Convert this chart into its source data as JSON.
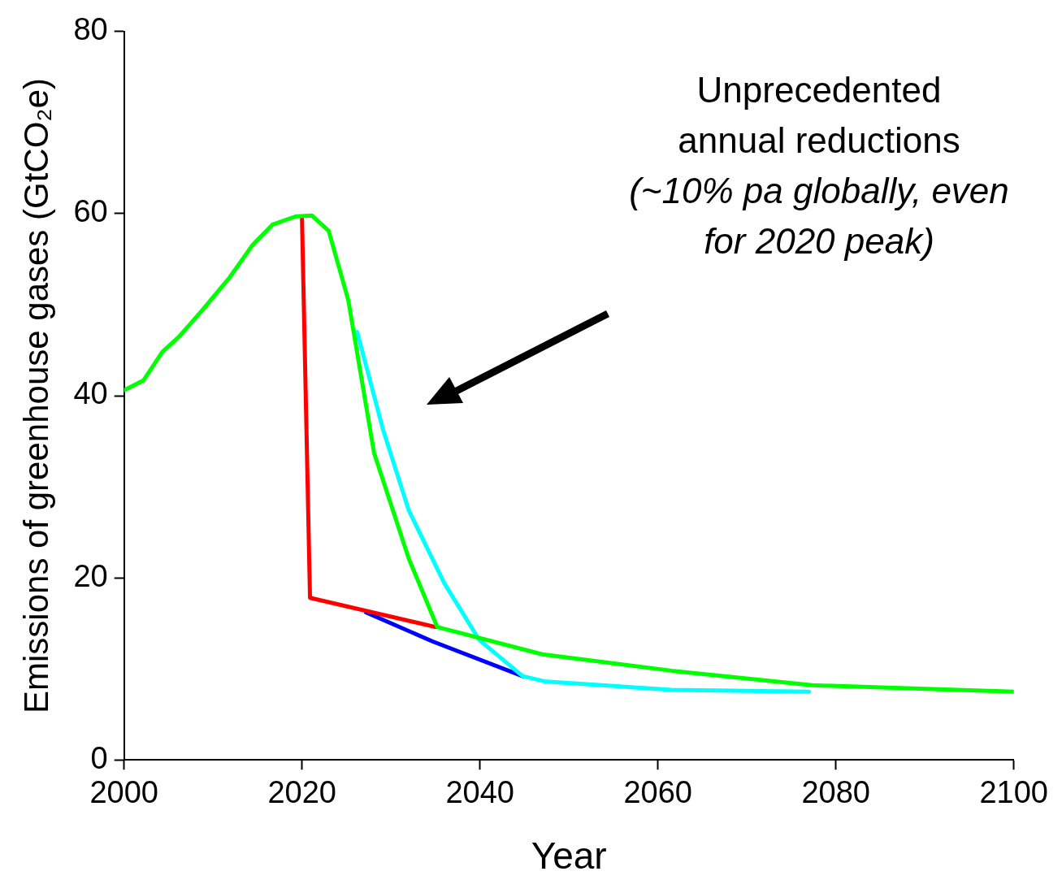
{
  "chart_data": {
    "type": "line",
    "xlabel": "Year",
    "ylabel": "Emissions of greenhouse gases (GtCO₂e)",
    "xlim": [
      2000,
      2100
    ],
    "xticks": [
      2000,
      2020,
      2040,
      2060,
      2080,
      2100
    ],
    "ylim": [
      0,
      80
    ],
    "yticks": [
      0,
      20,
      40,
      60,
      80
    ],
    "grid": false,
    "legend": false,
    "marker": "none",
    "line_style": "solid",
    "annotations": [
      "Unprecedented annual reductions",
      "(~10% pa globally, even for 2020 peak)"
    ],
    "series": [
      {
        "color": "#0000ff",
        "x": [
          2027.2,
          2034.7,
          2044.8
        ],
        "values": [
          16.2,
          13.0,
          9.2
        ]
      },
      {
        "color": "#ff0000",
        "x": [
          2020,
          2020.9,
          2035
        ],
        "values": [
          59.4,
          17.8,
          14.6
        ]
      },
      {
        "color": "#00ffff",
        "x": [
          2026.2,
          2029.1,
          2032,
          2036,
          2039.9,
          2044.8,
          2047.4,
          2061.5,
          2077
        ],
        "values": [
          47.0,
          36.3,
          27.4,
          19.4,
          13.2,
          9.2,
          8.6,
          7.7,
          7.5
        ]
      },
      {
        "color": "#00ff00",
        "x": [
          2000,
          2002.2,
          2004.3,
          2006.2,
          2008.8,
          2011.8,
          2014.4,
          2016.7,
          2019.3,
          2021.1,
          2023,
          2025.2,
          2028.1,
          2032,
          2035.2,
          2047,
          2061.5,
          2077.3,
          2100
        ],
        "values": [
          40.6,
          41.7,
          44.8,
          46.5,
          49.4,
          52.9,
          56.5,
          58.8,
          59.7,
          59.8,
          58.1,
          50.5,
          33.7,
          22.1,
          14.6,
          11.6,
          9.8,
          8.2,
          7.5
        ]
      }
    ]
  }
}
